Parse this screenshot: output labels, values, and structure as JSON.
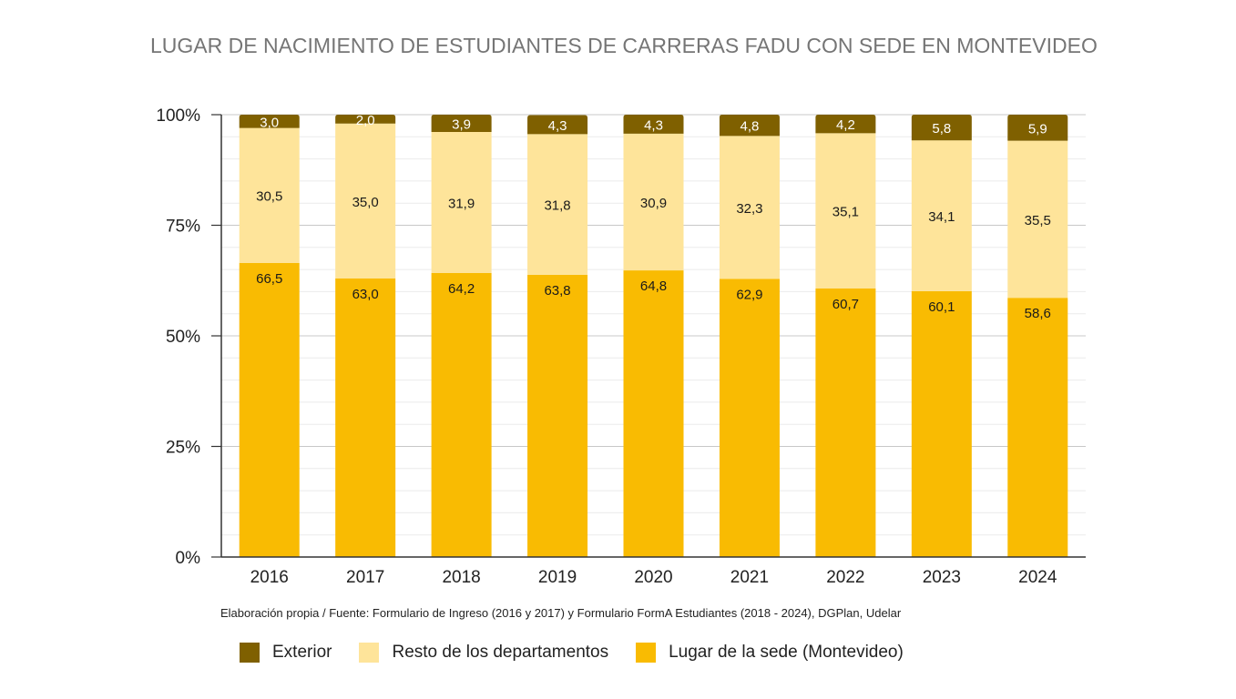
{
  "chart_data": {
    "type": "bar",
    "stacked": true,
    "title": "LUGAR DE NACIMIENTO DE ESTUDIANTES DE CARRERAS FADU CON SEDE EN MONTEVIDEO",
    "categories": [
      "2016",
      "2017",
      "2018",
      "2019",
      "2020",
      "2021",
      "2022",
      "2023",
      "2024"
    ],
    "series": [
      {
        "name": "Lugar de la sede (Montevideo)",
        "color": "#f9bb02",
        "values": [
          66.5,
          63.0,
          64.2,
          63.8,
          64.8,
          62.9,
          60.7,
          60.1,
          58.6
        ],
        "labels": [
          "66,5",
          "63,0",
          "64,2",
          "63,8",
          "64,8",
          "62,9",
          "60,7",
          "60,1",
          "58,6"
        ]
      },
      {
        "name": "Resto de los departamentos",
        "color": "#fee49a",
        "values": [
          30.5,
          35.0,
          31.9,
          31.8,
          30.9,
          32.3,
          35.1,
          34.1,
          35.5
        ],
        "labels": [
          "30,5",
          "35,0",
          "31,9",
          "31,8",
          "30,9",
          "32,3",
          "35,1",
          "34,1",
          "35,5"
        ]
      },
      {
        "name": "Exterior",
        "color": "#7f6000",
        "values": [
          3.0,
          2.0,
          3.9,
          4.3,
          4.3,
          4.8,
          4.2,
          5.8,
          5.9
        ],
        "labels": [
          "3,0",
          "2,0",
          "3,9",
          "4,3",
          "4,3",
          "4,8",
          "4,2",
          "5,8",
          "5,9"
        ]
      }
    ],
    "yticks": [
      "0%",
      "25%",
      "50%",
      "75%",
      "100%"
    ],
    "ylim": [
      0,
      100
    ],
    "grid": true,
    "legend_order": [
      "Exterior",
      "Resto de los departamentos",
      "Lugar de la sede (Montevideo)"
    ],
    "legend_position": "bottom"
  },
  "source_note": "Elaboración propia / Fuente: Formulario de Ingreso (2016 y 2017) y Formulario FormA Estudiantes (2018 - 2024), DGPlan, Udelar"
}
